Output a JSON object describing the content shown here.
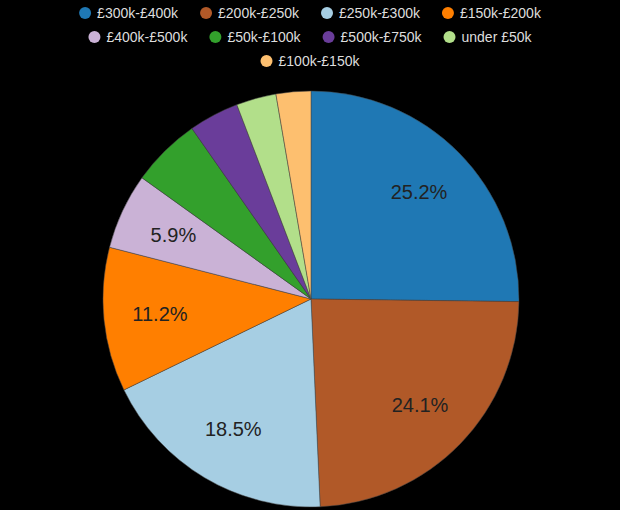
{
  "chart_data": {
    "type": "pie",
    "categories": [
      "£300k-£400k",
      "£200k-£250k",
      "£250k-£300k",
      "£150k-£200k",
      "£400k-£500k",
      "£50k-£100k",
      "£500k-£750k",
      "under £50k",
      "£100k-£150k"
    ],
    "values": [
      25.2,
      24.1,
      18.5,
      11.2,
      5.9,
      5.4,
      3.9,
      3.1,
      2.7
    ],
    "value_labels": [
      "25.2%",
      "24.1%",
      "18.5%",
      "11.2%",
      "5.9%",
      null,
      null,
      null,
      null
    ],
    "colors": [
      "#1f78b4",
      "#b15928",
      "#a6cee3",
      "#ff7f00",
      "#cab2d6",
      "#33a02c",
      "#6a3d9a",
      "#b2df8a",
      "#fdbf6f"
    ],
    "data_labels": true,
    "legend": "top"
  }
}
